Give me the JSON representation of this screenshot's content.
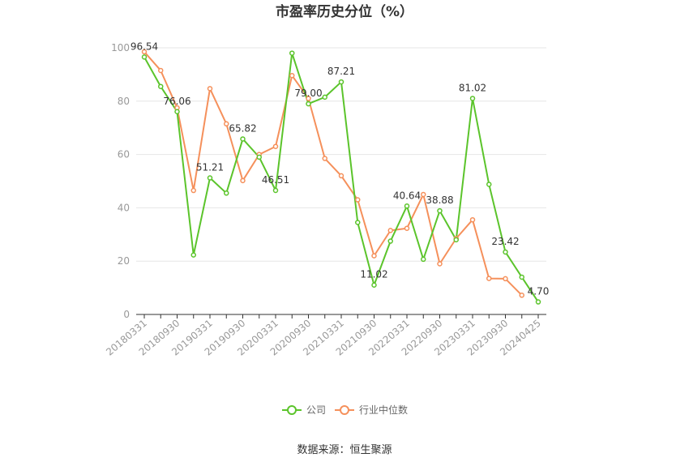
{
  "chart_data": {
    "type": "line",
    "title": "市盈率历史分位（%）",
    "ylim": [
      0,
      100
    ],
    "y_ticks": [
      "0",
      "20",
      "40",
      "60",
      "80",
      "100"
    ],
    "x_tick_labels": [
      "20180331",
      "20180930",
      "20190331",
      "20190930",
      "20200331",
      "20200930",
      "20210331",
      "20210930",
      "20220331",
      "20220930",
      "20230331",
      "20230930",
      "20240425"
    ],
    "x": [
      "20180331",
      "20180630",
      "20180930",
      "20181231",
      "20190331",
      "20190630",
      "20190930",
      "20191231",
      "20200331",
      "20200630",
      "20200930",
      "20201231",
      "20210331",
      "20210630",
      "20210930",
      "20211231",
      "20220331",
      "20220630",
      "20220930",
      "20221231",
      "20230331",
      "20230630",
      "20230930",
      "20231231",
      "20240425"
    ],
    "series": [
      {
        "name": "公司",
        "color": "#5bc42b",
        "values": [
          96.54,
          85.5,
          76.06,
          22.3,
          51.21,
          45.5,
          65.82,
          59.0,
          46.51,
          98.0,
          79.0,
          81.5,
          87.21,
          34.5,
          11.02,
          27.5,
          40.64,
          20.7,
          38.88,
          28.0,
          81.02,
          48.8,
          23.42,
          14.0,
          4.7
        ],
        "labels": [
          "96.54",
          "",
          "76.06",
          "",
          "51.21",
          "",
          "65.82",
          "",
          "46.51",
          "",
          "79.00",
          "",
          "87.21",
          "",
          "11.02",
          "",
          "40.64",
          "",
          "38.88",
          "",
          "81.02",
          "",
          "23.42",
          "",
          "4.70"
        ]
      },
      {
        "name": "行业中位数",
        "color": "#f5905b",
        "values": [
          98.5,
          91.5,
          77.5,
          46.5,
          84.7,
          71.5,
          50.2,
          60.0,
          63.0,
          89.6,
          81.0,
          58.5,
          52.0,
          43.0,
          22.0,
          31.5,
          32.3,
          45.0,
          19.0,
          28.5,
          35.5,
          13.5,
          13.4,
          7.2,
          null
        ]
      }
    ],
    "legend_position": "bottom",
    "grid": true
  },
  "source_text": "数据来源：恒生聚源"
}
